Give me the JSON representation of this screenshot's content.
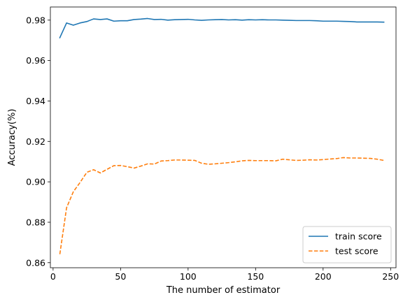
{
  "chart_data": {
    "type": "line",
    "title": "",
    "xlabel": "The number of estimator",
    "ylabel": "Accuracy(%)",
    "xlim": [
      -2,
      254
    ],
    "ylim": [
      0.8575,
      0.9865
    ],
    "xticks": [
      0,
      50,
      100,
      150,
      200,
      250
    ],
    "yticks": [
      0.86,
      0.88,
      0.9,
      0.92,
      0.94,
      0.96,
      0.98
    ],
    "grid": false,
    "legend_position": "lower-right",
    "x": [
      5,
      10,
      15,
      20,
      25,
      30,
      35,
      40,
      45,
      50,
      55,
      60,
      65,
      70,
      75,
      80,
      85,
      90,
      95,
      100,
      105,
      110,
      115,
      120,
      125,
      130,
      135,
      140,
      145,
      150,
      155,
      160,
      165,
      170,
      175,
      180,
      185,
      190,
      195,
      200,
      205,
      210,
      215,
      220,
      225,
      230,
      235,
      240,
      245
    ],
    "series": [
      {
        "name": "train score",
        "color": "#1f77b4",
        "style": "solid",
        "values": [
          0.9713,
          0.9786,
          0.9775,
          0.9786,
          0.9793,
          0.9806,
          0.9803,
          0.9806,
          0.9795,
          0.9797,
          0.9797,
          0.9803,
          0.9805,
          0.9808,
          0.9803,
          0.9804,
          0.98,
          0.9802,
          0.9803,
          0.9804,
          0.9801,
          0.9799,
          0.9801,
          0.9802,
          0.9803,
          0.9801,
          0.9802,
          0.98,
          0.9802,
          0.9801,
          0.9802,
          0.9801,
          0.9801,
          0.98,
          0.9799,
          0.9798,
          0.9798,
          0.9798,
          0.9797,
          0.9795,
          0.9795,
          0.9795,
          0.9794,
          0.9793,
          0.9791,
          0.9791,
          0.9791,
          0.9791,
          0.979
        ]
      },
      {
        "name": "test score",
        "color": "#ff7f0e",
        "style": "dashed",
        "values": [
          0.8642,
          0.8872,
          0.8951,
          0.8997,
          0.9047,
          0.906,
          0.9044,
          0.9062,
          0.908,
          0.9081,
          0.9075,
          0.9068,
          0.9078,
          0.9089,
          0.9088,
          0.9103,
          0.9105,
          0.9108,
          0.9108,
          0.9107,
          0.9106,
          0.9092,
          0.9087,
          0.9089,
          0.9092,
          0.9095,
          0.9099,
          0.9104,
          0.9106,
          0.9105,
          0.9105,
          0.9105,
          0.9104,
          0.9112,
          0.9109,
          0.9106,
          0.9107,
          0.9109,
          0.9108,
          0.911,
          0.9113,
          0.9115,
          0.912,
          0.9118,
          0.9118,
          0.9117,
          0.9116,
          0.9112,
          0.9106
        ]
      }
    ]
  }
}
